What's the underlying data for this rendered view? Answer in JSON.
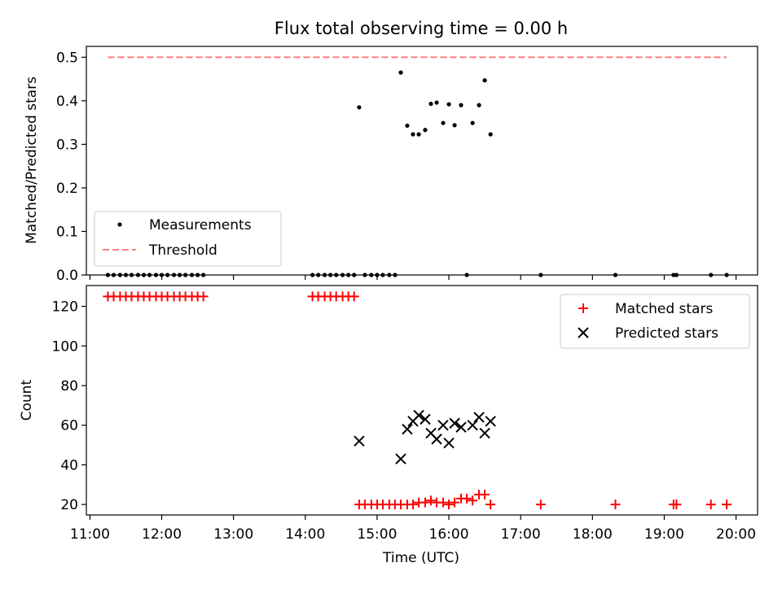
{
  "title": "Flux total observing time = 0.00 h",
  "chart_data": [
    {
      "type": "scatter",
      "ylabel": "Matched/Predicted stars",
      "ylim": [
        0,
        0.525
      ],
      "yticks": [
        "0.0",
        "0.1",
        "0.2",
        "0.3",
        "0.4",
        "0.5"
      ],
      "xlim": [
        10.95,
        20.3
      ],
      "legend_position": "lower-left",
      "series": [
        {
          "name": "Measurements",
          "marker": "dot",
          "color": "#000000",
          "x": [
            11.25,
            11.33,
            11.42,
            11.5,
            11.58,
            11.67,
            11.75,
            11.83,
            11.92,
            12.0,
            12.08,
            12.17,
            12.25,
            12.33,
            12.42,
            12.5,
            12.58,
            14.1,
            14.18,
            14.27,
            14.35,
            14.43,
            14.52,
            14.6,
            14.68,
            14.75,
            14.83,
            14.92,
            15.0,
            15.08,
            15.17,
            15.25,
            15.33,
            15.42,
            15.5,
            15.58,
            15.67,
            15.75,
            15.83,
            15.92,
            16.0,
            16.08,
            16.17,
            16.25,
            16.33,
            16.42,
            16.5,
            16.58,
            17.28,
            18.32,
            19.13,
            19.17,
            19.65,
            19.87
          ],
          "y": [
            0,
            0,
            0,
            0,
            0,
            0,
            0,
            0,
            0,
            0,
            0,
            0,
            0,
            0,
            0,
            0,
            0,
            0,
            0,
            0,
            0,
            0,
            0,
            0,
            0,
            0.385,
            0,
            0,
            0,
            0,
            0,
            0,
            0.465,
            0.343,
            0.323,
            0.323,
            0.333,
            0.393,
            0.396,
            0.349,
            0.392,
            0.344,
            0.39,
            0,
            0.349,
            0.39,
            0.447,
            0.323,
            0,
            0,
            0,
            0,
            0,
            0
          ]
        },
        {
          "name": "Threshold",
          "type": "line",
          "dashed": true,
          "color": "#ff7f7f",
          "x": [
            11.25,
            19.87
          ],
          "y": [
            0.5,
            0.5
          ]
        }
      ]
    },
    {
      "type": "scatter",
      "xlabel": "Time (UTC)",
      "ylabel": "Count",
      "ylim": [
        14.7,
        130.5
      ],
      "yticks": [
        "20",
        "40",
        "60",
        "80",
        "100",
        "120"
      ],
      "xlim": [
        10.95,
        20.3
      ],
      "xticks": [
        "11:00",
        "12:00",
        "13:00",
        "14:00",
        "15:00",
        "16:00",
        "17:00",
        "18:00",
        "19:00",
        "20:00"
      ],
      "legend_position": "upper-right",
      "series": [
        {
          "name": "Matched stars",
          "marker": "plus",
          "color": "#ff0000",
          "x": [
            11.25,
            11.33,
            11.42,
            11.5,
            11.58,
            11.67,
            11.75,
            11.83,
            11.92,
            12.0,
            12.08,
            12.17,
            12.25,
            12.33,
            12.42,
            12.5,
            12.58,
            14.1,
            14.18,
            14.27,
            14.35,
            14.43,
            14.52,
            14.6,
            14.68,
            14.75,
            14.83,
            14.92,
            15.0,
            15.08,
            15.17,
            15.25,
            15.33,
            15.42,
            15.5,
            15.58,
            15.67,
            15.75,
            15.83,
            15.92,
            16.0,
            16.08,
            16.17,
            16.25,
            16.33,
            16.42,
            16.5,
            16.58,
            17.28,
            18.32,
            19.13,
            19.17,
            19.65,
            19.87
          ],
          "y": [
            125,
            125,
            125,
            125,
            125,
            125,
            125,
            125,
            125,
            125,
            125,
            125,
            125,
            125,
            125,
            125,
            125,
            125,
            125,
            125,
            125,
            125,
            125,
            125,
            125,
            20,
            20,
            20,
            20,
            20,
            20,
            20,
            20,
            20,
            20,
            21,
            21,
            22,
            21,
            21,
            20,
            21,
            23,
            23,
            22,
            25,
            25,
            20,
            20,
            20,
            20,
            20,
            20,
            20
          ]
        },
        {
          "name": "Predicted stars",
          "marker": "x",
          "color": "#000000",
          "x": [
            14.75,
            15.33,
            15.42,
            15.5,
            15.58,
            15.67,
            15.75,
            15.83,
            15.92,
            16.0,
            16.08,
            16.17,
            16.33,
            16.42,
            16.5,
            16.58
          ],
          "y": [
            52,
            43,
            58,
            62,
            65,
            63,
            56,
            53,
            60,
            51,
            61,
            59,
            60,
            64,
            56,
            62
          ]
        }
      ]
    }
  ]
}
